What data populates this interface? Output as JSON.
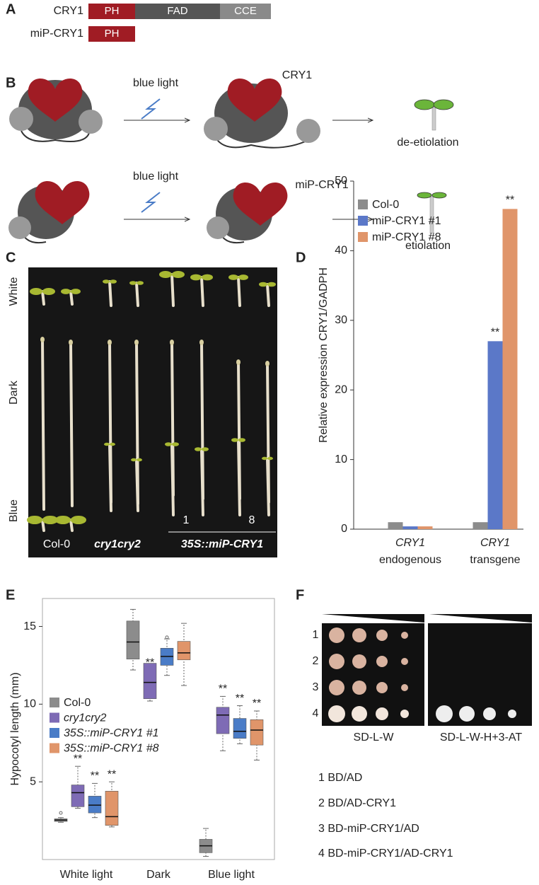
{
  "panel_a": {
    "letter": "A",
    "rows": [
      {
        "label": "CRY1",
        "domains": [
          "PH",
          "FAD",
          "CCE"
        ]
      },
      {
        "label": "miP-CRY1",
        "domains": [
          "PH"
        ]
      }
    ]
  },
  "panel_b": {
    "letter": "B",
    "rows": [
      {
        "stimulus": "blue light",
        "protein": "CRY1",
        "outcome": "de-etiolation"
      },
      {
        "stimulus": "blue light",
        "protein": "miP-CRY1",
        "outcome": "etiolation"
      }
    ]
  },
  "panel_c": {
    "letter": "C",
    "conditions": [
      "White",
      "Dark",
      "Blue"
    ],
    "genotypes": [
      "Col-0",
      "cry1cry2"
    ],
    "transgenic": "35S::miP-CRY1",
    "lines": [
      "1",
      "8"
    ]
  },
  "chart_data": [
    {
      "type": "bar",
      "letter": "D",
      "y_label": "Relative expression CRY1/GADPH",
      "categories": [
        "CRY1",
        "CRY1"
      ],
      "sublabels": [
        "endogenous",
        "transgene"
      ],
      "series": [
        {
          "name": "Col-0",
          "color": "#8c8c8c",
          "values": [
            1.0,
            1.0
          ],
          "annotations": [
            null,
            null
          ]
        },
        {
          "name": "miP-CRY1 #1",
          "color": "#5b78c8",
          "values": [
            0.4,
            27
          ],
          "annotations": [
            null,
            "**"
          ]
        },
        {
          "name": "miP-CRY1 #8",
          "color": "#e0956a",
          "values": [
            0.4,
            46
          ],
          "annotations": [
            null,
            "**"
          ]
        }
      ],
      "ylim": [
        0,
        50
      ],
      "yticks": [
        0,
        10,
        20,
        30,
        40,
        50
      ],
      "grid": false
    },
    {
      "type": "box",
      "letter": "E",
      "y_label": "Hypocotyl length (mm)",
      "categories": [
        "White light",
        "Dark",
        "Blue light"
      ],
      "series": [
        {
          "name": "Col-0",
          "color": "#8c8c8c",
          "whisker_low": [
            2.4,
            12.2,
            0.2
          ],
          "q1": [
            2.45,
            12.9,
            0.44
          ],
          "median": [
            2.54,
            14.0,
            0.88
          ],
          "q3": [
            2.62,
            15.35,
            1.3
          ],
          "whisker_high": [
            2.7,
            16.1,
            2.0
          ],
          "outliers": [
            [
              3.0
            ],
            [],
            []
          ],
          "annotations": [
            null,
            null,
            null
          ]
        },
        {
          "name": "cry1cry2",
          "color": "#7e6bb5",
          "whisker_low": [
            3.3,
            10.2,
            7.0
          ],
          "q1": [
            3.4,
            10.35,
            8.1
          ],
          "median": [
            4.3,
            11.4,
            9.3
          ],
          "q3": [
            4.8,
            12.63,
            9.8
          ],
          "whisker_high": [
            6.0,
            12.2,
            10.5
          ],
          "outliers": [
            [],
            [],
            []
          ],
          "annotations": [
            "**",
            "**",
            "**"
          ]
        },
        {
          "name": "35S::miP-CRY1 #1",
          "color": "#4a7cc7",
          "whisker_low": [
            2.7,
            11.85,
            7.45
          ],
          "q1": [
            3.0,
            12.5,
            7.8
          ],
          "median": [
            3.5,
            13.07,
            8.25
          ],
          "q3": [
            4.08,
            13.6,
            9.08
          ],
          "whisker_high": [
            4.9,
            14.2,
            9.9
          ],
          "outliers": [
            [],
            [
              14.3
            ],
            []
          ],
          "annotations": [
            "**",
            null,
            "**"
          ]
        },
        {
          "name": "35S::miP-CRY1 #8",
          "color": "#e0956a",
          "whisker_low": [
            2.1,
            11.2,
            6.4
          ],
          "q1": [
            2.2,
            12.85,
            7.37
          ],
          "median": [
            2.76,
            13.3,
            8.33
          ],
          "q3": [
            4.4,
            14.04,
            9.0
          ],
          "whisker_high": [
            5.0,
            15.2,
            9.56
          ],
          "outliers": [
            [],
            [],
            []
          ],
          "annotations": [
            "**",
            null,
            "**"
          ]
        }
      ],
      "ylim": [
        0,
        16.8
      ],
      "yticks": [
        5,
        10,
        15
      ],
      "grid": false
    }
  ],
  "panel_f": {
    "letter": "F",
    "rows": [
      "1",
      "2",
      "3",
      "4"
    ],
    "media": [
      "SD-L-W",
      "SD-L-W-H+3-AT"
    ],
    "key": [
      "1 BD/AD",
      "2 BD/AD-CRY1",
      "3 BD-miP-CRY1/AD",
      "4 BD-miP-CRY1/AD-CRY1"
    ]
  }
}
